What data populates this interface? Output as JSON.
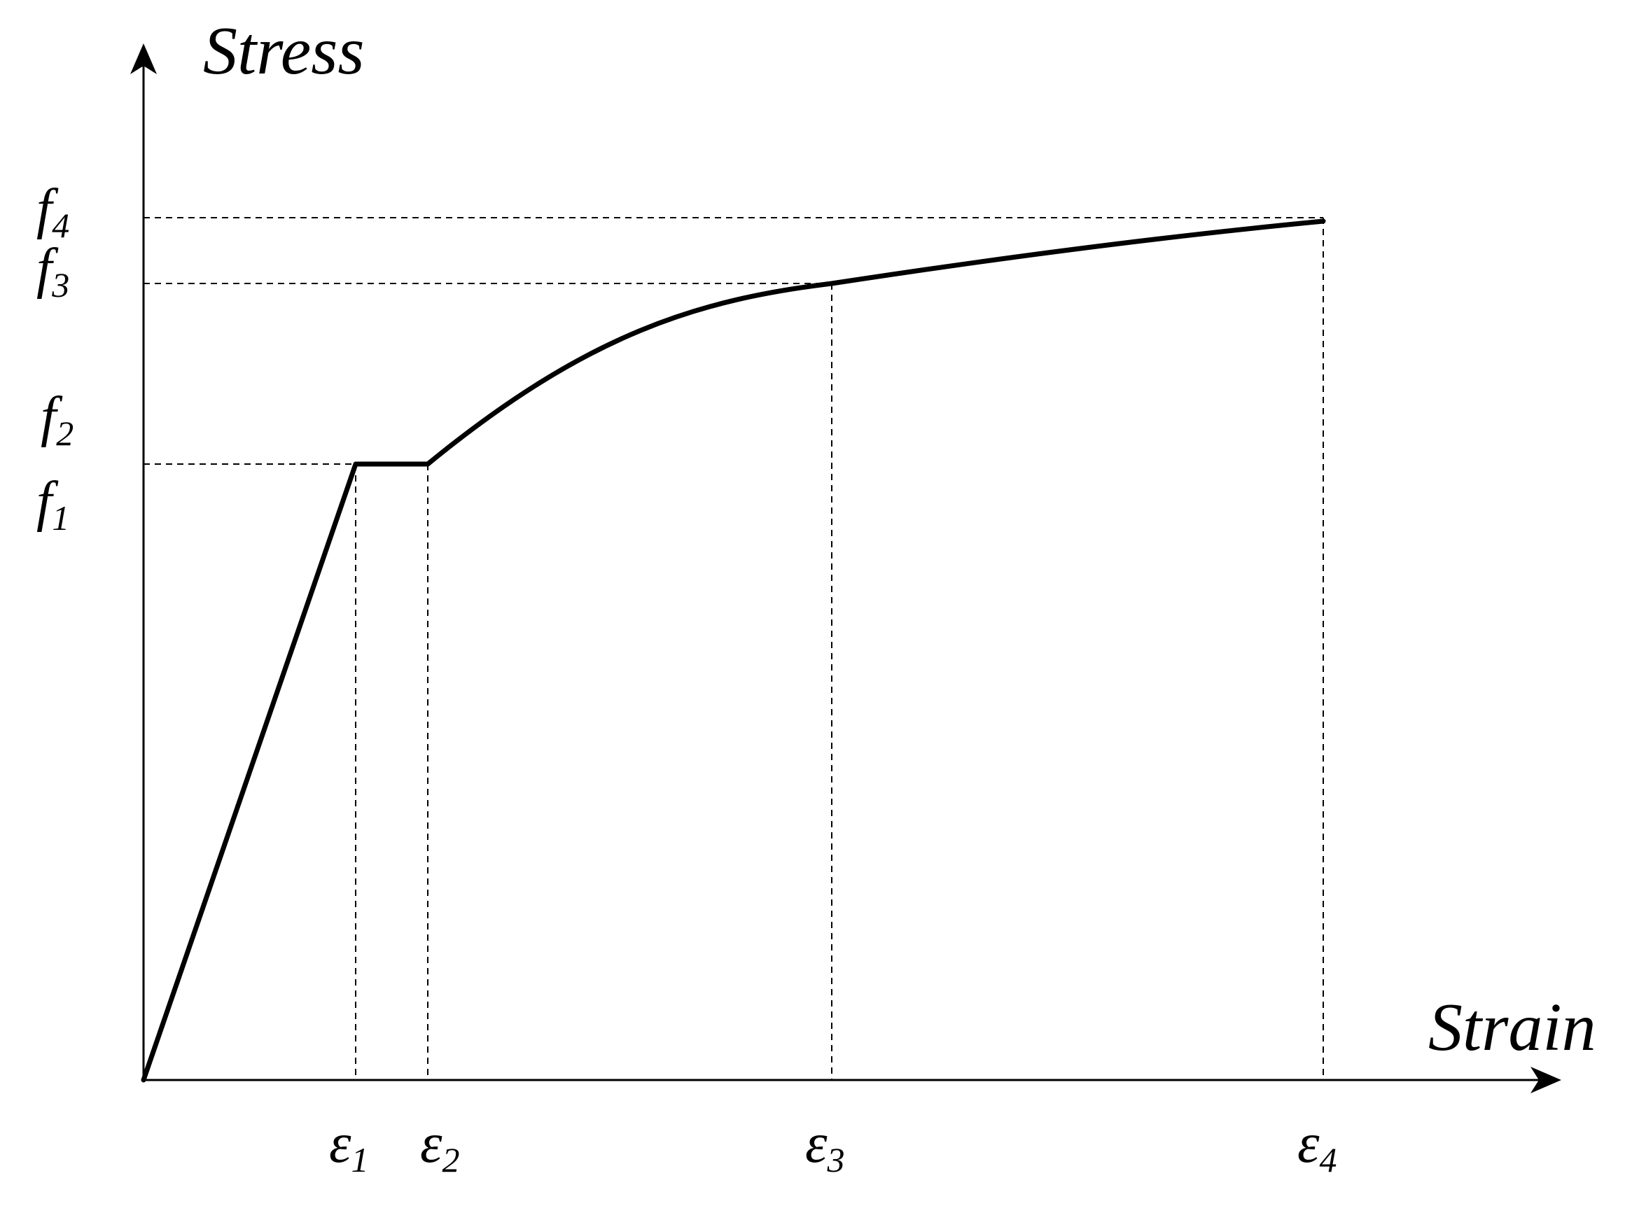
{
  "axes": {
    "y_title": "Stress",
    "x_title": "Strain"
  },
  "stress_levels": [
    {
      "symbol": "f",
      "subscript": "4"
    },
    {
      "symbol": "f",
      "subscript": "3"
    },
    {
      "symbol": "f",
      "subscript": "2"
    },
    {
      "symbol": "f",
      "subscript": "1"
    }
  ],
  "strain_levels": [
    {
      "symbol": "ε",
      "subscript": "1"
    },
    {
      "symbol": "ε",
      "subscript": "2"
    },
    {
      "symbol": "ε",
      "subscript": "3"
    },
    {
      "symbol": "ε",
      "subscript": "4"
    }
  ]
}
